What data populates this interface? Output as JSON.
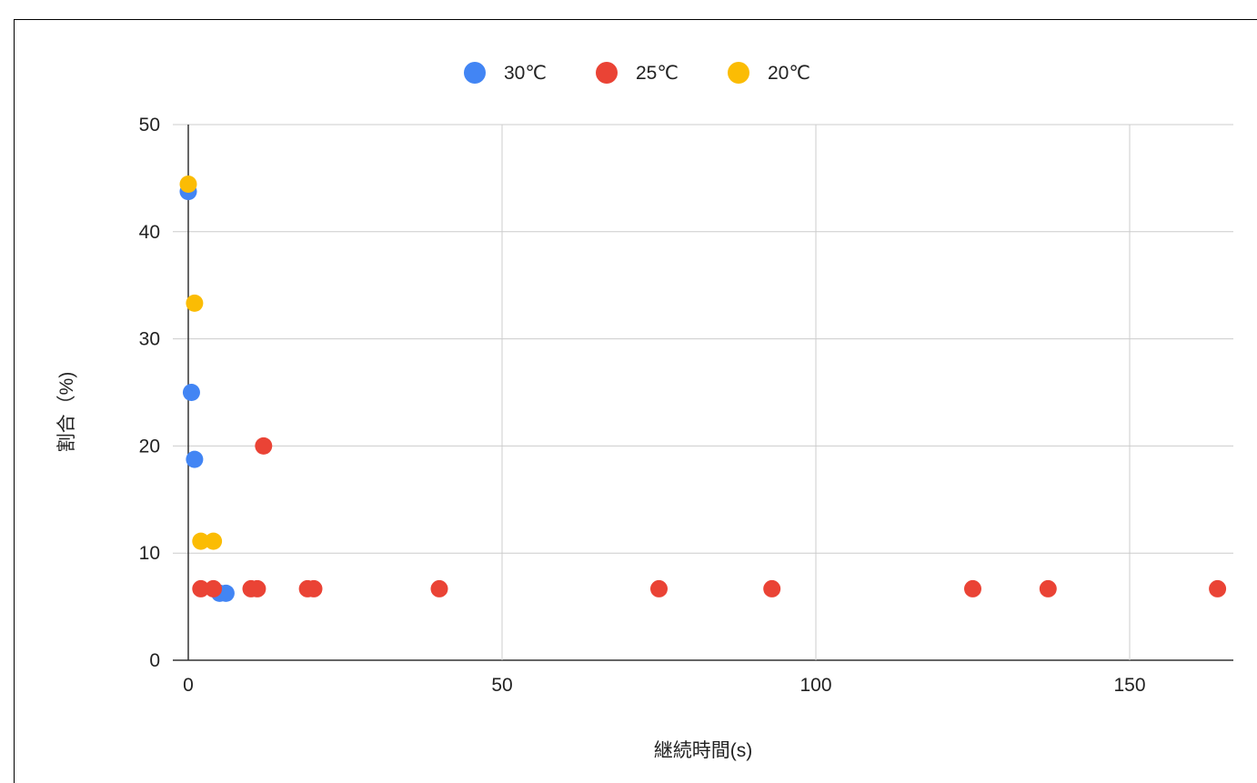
{
  "chart_data": {
    "type": "scatter",
    "xlabel": "継続時間(s)",
    "ylabel": "割合（%)",
    "xlim": [
      -3,
      166
    ],
    "ylim": [
      0,
      50
    ],
    "x_ticks": [
      "0",
      "50",
      "100",
      "150"
    ],
    "y_ticks": [
      "0",
      "10",
      "20",
      "30",
      "40",
      "50"
    ],
    "grid": true,
    "legend_position": "top",
    "series": [
      {
        "name": "30℃",
        "color": "#4285F4",
        "points": [
          [
            0,
            43.75
          ],
          [
            0.5,
            25
          ],
          [
            1,
            18.75
          ],
          [
            5,
            6.25
          ],
          [
            6,
            6.25
          ]
        ]
      },
      {
        "name": "25℃",
        "color": "#EA4335",
        "points": [
          [
            2,
            6.67
          ],
          [
            4,
            6.67
          ],
          [
            10,
            6.67
          ],
          [
            11,
            6.67
          ],
          [
            12,
            20
          ],
          [
            19,
            6.67
          ],
          [
            20,
            6.67
          ],
          [
            40,
            6.67
          ],
          [
            75,
            6.67
          ],
          [
            93,
            6.67
          ],
          [
            125,
            6.67
          ],
          [
            137,
            6.67
          ],
          [
            164,
            6.67
          ]
        ]
      },
      {
        "name": "20℃",
        "color": "#FBBC04",
        "points": [
          [
            0,
            44.44
          ],
          [
            1,
            33.33
          ],
          [
            2,
            11.11
          ],
          [
            4,
            11.11
          ]
        ]
      }
    ]
  }
}
